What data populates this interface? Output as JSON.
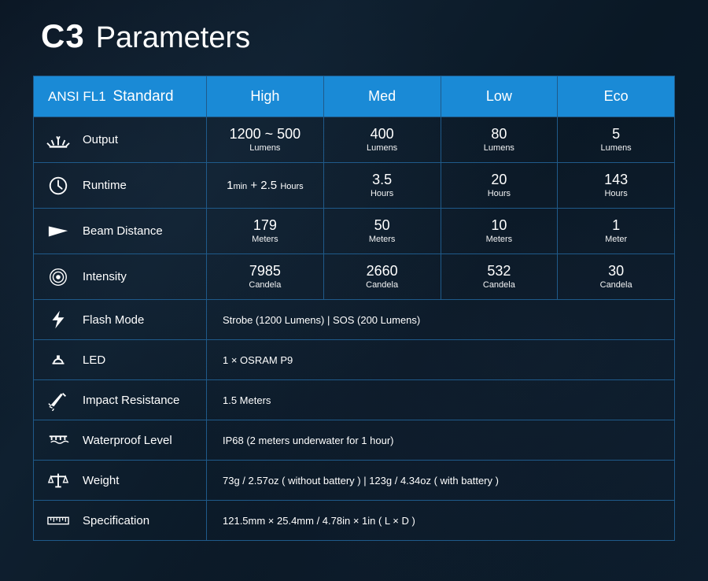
{
  "title": {
    "model": "C3",
    "word": "Parameters"
  },
  "header": {
    "standard_prefix": "ANSI FL1",
    "standard_word": "Standard",
    "modes": [
      "High",
      "Med",
      "Low",
      "Eco"
    ]
  },
  "rows_multi": [
    {
      "icon": "output-icon",
      "label": "Output",
      "values": [
        {
          "big": "1200 ~ 500",
          "unit": "Lumens"
        },
        {
          "big": "400",
          "unit": "Lumens"
        },
        {
          "big": "80",
          "unit": "Lumens"
        },
        {
          "big": "5",
          "unit": "Lumens"
        }
      ]
    },
    {
      "icon": "runtime-icon",
      "label": "Runtime",
      "values": [
        {
          "special": "runtime",
          "big": "1",
          "unit1": "min",
          "plus": " + ",
          "big2": "2.5",
          "unit2": "Hours"
        },
        {
          "big": "3.5",
          "unit": "Hours"
        },
        {
          "big": "20",
          "unit": "Hours"
        },
        {
          "big": "143",
          "unit": "Hours"
        }
      ]
    },
    {
      "icon": "beam-icon",
      "label": "Beam Distance",
      "values": [
        {
          "big": "179",
          "unit": "Meters"
        },
        {
          "big": "50",
          "unit": "Meters"
        },
        {
          "big": "10",
          "unit": "Meters"
        },
        {
          "big": "1",
          "unit": "Meter"
        }
      ]
    },
    {
      "icon": "intensity-icon",
      "label": "Intensity",
      "values": [
        {
          "big": "7985",
          "unit": "Candela"
        },
        {
          "big": "2660",
          "unit": "Candela"
        },
        {
          "big": "532",
          "unit": "Candela"
        },
        {
          "big": "30",
          "unit": "Candela"
        }
      ]
    }
  ],
  "rows_single": [
    {
      "icon": "flash-icon",
      "label": "Flash Mode",
      "value": "Strobe (1200 Lumens)  |  SOS (200 Lumens)"
    },
    {
      "icon": "led-icon",
      "label": "LED",
      "value": "1 × OSRAM P9"
    },
    {
      "icon": "impact-icon",
      "label": "Impact Resistance",
      "value": "1.5 Meters"
    },
    {
      "icon": "waterproof-icon",
      "label": "Waterproof Level",
      "value": "IP68  (2 meters underwater for 1 hour)"
    },
    {
      "icon": "weight-icon",
      "label": "Weight",
      "value": "73g / 2.57oz ( without battery )  |  123g / 4.34oz ( with battery )"
    },
    {
      "icon": "spec-icon",
      "label": "Specification",
      "value": "121.5mm × 25.4mm / 4.78in × 1in ( L × D )"
    }
  ],
  "colors": {
    "background": "#0a1828",
    "header_bg": "#1a8ad6",
    "border": "#1f5a8a",
    "text": "#ffffff"
  }
}
